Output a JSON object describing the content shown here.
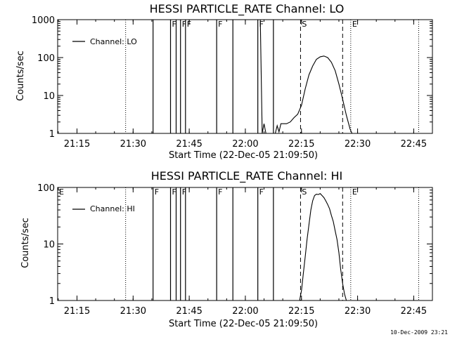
{
  "footer": {
    "timestamp": "10-Dec-2009 23:21"
  },
  "chart_data": [
    {
      "type": "line",
      "title": "HESSI PARTICLE_RATE Channel: LO",
      "xlabel": "Start Time (22-Dec-05 21:09:50)",
      "ylabel": "Counts/sec",
      "yscale": "log",
      "ylim": [
        1,
        1000
      ],
      "xlim": [
        "21:09:50",
        "22:50:00"
      ],
      "xticks": [
        "21:15",
        "21:30",
        "21:45",
        "22:00",
        "22:15",
        "22:30",
        "22:45"
      ],
      "yticks": [
        "1",
        "10",
        "100",
        "1000"
      ],
      "legend": {
        "label": "Channel: LO",
        "position": "top-left"
      },
      "series": [
        {
          "name": "Channel: LO",
          "x": [
            "21:10",
            "21:11",
            "21:12",
            "21:13",
            "21:15",
            "21:20",
            "21:25",
            "21:28",
            "21:30",
            "21:32",
            "21:34",
            "21:36",
            "21:38",
            "21:40",
            "21:42",
            "21:44",
            "21:46",
            "21:48",
            "21:50",
            "21:52",
            "21:54",
            "21:56",
            "21:58",
            "22:00",
            "22:02",
            "22:04",
            "22:04:30",
            "22:05",
            "22:05:30",
            "22:06",
            "22:07",
            "22:08",
            "22:08:30",
            "22:09",
            "22:09:30",
            "22:10",
            "22:11",
            "22:12",
            "22:13",
            "22:14",
            "22:15",
            "22:16",
            "22:17",
            "22:18",
            "22:19",
            "22:20",
            "22:21",
            "22:22",
            "22:23",
            "22:24",
            "22:25",
            "22:26",
            "22:27",
            "22:28",
            "22:28:30"
          ],
          "y": [
            1000,
            1000,
            1000,
            1000,
            1000,
            1000,
            1000,
            1000,
            1000,
            1000,
            1000,
            1000,
            1000,
            1000,
            1000,
            1000,
            1000,
            1000,
            1000,
            1000,
            1000,
            1000,
            1000,
            1000,
            1000,
            1000,
            1,
            1.8,
            1,
            1,
            1,
            1,
            1.6,
            1.1,
            1.8,
            1.8,
            1.8,
            2.0,
            2.6,
            3.2,
            5.5,
            15,
            35,
            60,
            90,
            105,
            110,
            100,
            75,
            45,
            20,
            8,
            3,
            1.3,
            1
          ]
        }
      ],
      "vlines_dashed": [
        "22:14:45",
        "22:26:00"
      ],
      "vlines_dotted": [
        "21:28:00",
        "22:28:10",
        "22:46:20"
      ],
      "vlines_solid": [
        "21:35:20",
        "21:40:00",
        "21:41:30",
        "21:42:40",
        "21:44:00",
        "21:52:20",
        "21:56:40",
        "22:03:20",
        "22:07:30"
      ],
      "flags": [
        {
          "label": "F",
          "x": "21:40:00"
        },
        {
          "label": "F",
          "x": "21:42:40"
        },
        {
          "label": "F",
          "x": "21:44:00"
        },
        {
          "label": "F",
          "x": "21:52:20"
        },
        {
          "label": "F",
          "x": "22:03:20"
        },
        {
          "label": "S",
          "x": "22:14:45"
        },
        {
          "label": "E",
          "x": "22:28:10"
        }
      ]
    },
    {
      "type": "line",
      "title": "HESSI PARTICLE_RATE Channel: HI",
      "xlabel": "Start Time (22-Dec-05 21:09:50)",
      "ylabel": "Counts/sec",
      "yscale": "log",
      "ylim": [
        1,
        100
      ],
      "xlim": [
        "21:09:50",
        "22:50:00"
      ],
      "xticks": [
        "21:15",
        "21:30",
        "21:45",
        "22:00",
        "22:15",
        "22:30",
        "22:45"
      ],
      "yticks": [
        "1",
        "10",
        "100"
      ],
      "legend": {
        "label": "Channel: HI",
        "position": "top-left"
      },
      "series": [
        {
          "name": "Channel: HI",
          "x": [
            "22:14:30",
            "22:15:00",
            "22:15:30",
            "22:16:00",
            "22:16:30",
            "22:17:00",
            "22:17:30",
            "22:18:00",
            "22:18:30",
            "22:19:00",
            "22:19:30",
            "22:20:00",
            "22:20:30",
            "22:21:00",
            "22:21:30",
            "22:22:00",
            "22:22:30",
            "22:23:00",
            "22:23:30",
            "22:24:00",
            "22:24:30",
            "22:25:00",
            "22:25:30",
            "22:26:00",
            "22:26:30",
            "22:27:00"
          ],
          "y": [
            1,
            1.5,
            3,
            6,
            12,
            22,
            40,
            58,
            72,
            76,
            75,
            78,
            72,
            66,
            58,
            50,
            42,
            32,
            25,
            17,
            12,
            7,
            3.5,
            2,
            1.3,
            1
          ]
        }
      ],
      "vlines_dashed": [
        "22:14:45",
        "22:26:00"
      ],
      "vlines_dotted": [
        "21:28:00",
        "22:28:10",
        "22:46:20"
      ],
      "vlines_solid": [
        "21:35:20",
        "21:40:00",
        "21:41:30",
        "21:42:40",
        "21:44:00",
        "21:52:20",
        "21:56:40",
        "22:03:20",
        "22:07:30"
      ],
      "flags": [
        {
          "label": "E",
          "x": "21:09:50"
        },
        {
          "label": "F",
          "x": "21:35:20"
        },
        {
          "label": "F",
          "x": "21:40:00"
        },
        {
          "label": "F",
          "x": "21:42:40"
        },
        {
          "label": "F",
          "x": "21:52:20"
        },
        {
          "label": "F",
          "x": "22:03:20"
        },
        {
          "label": "S",
          "x": "22:14:45"
        },
        {
          "label": "E",
          "x": "22:28:10"
        }
      ]
    }
  ]
}
